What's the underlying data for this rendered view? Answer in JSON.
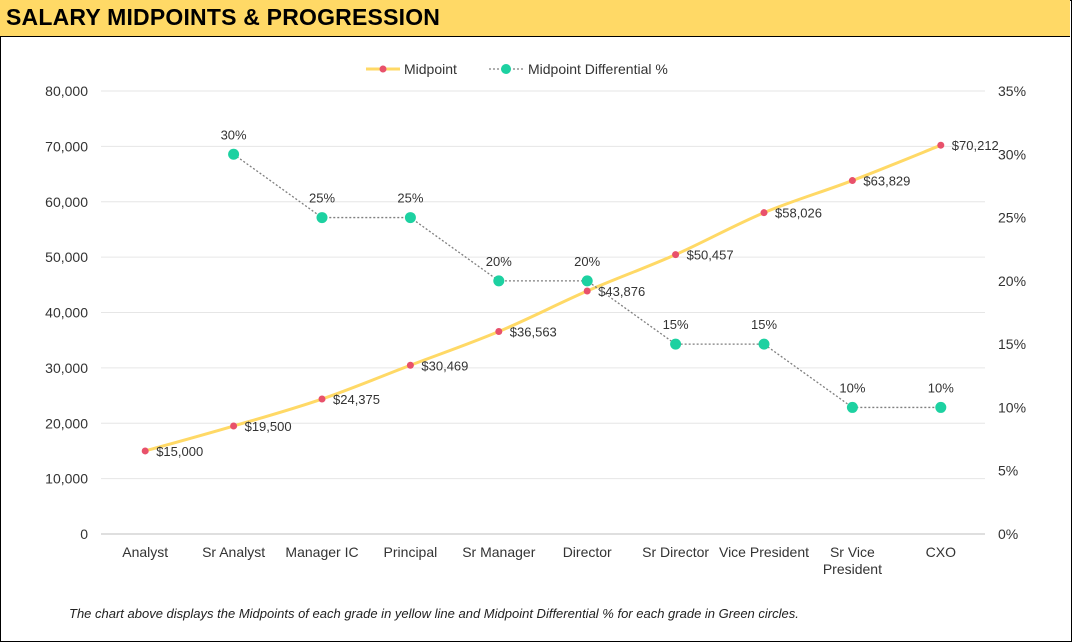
{
  "header": {
    "title": "SALARY MIDPOINTS & PROGRESSION"
  },
  "footnote": "The chart above displays the Midpoints of each grade in yellow line and Midpoint Differential % for each grade in Green circles.",
  "chart_data": {
    "type": "line",
    "categories": [
      [
        "Analyst"
      ],
      [
        "Sr Analyst"
      ],
      [
        "Manager IC"
      ],
      [
        "Principal"
      ],
      [
        "Sr Manager"
      ],
      [
        "Director"
      ],
      [
        "Sr Director"
      ],
      [
        "Vice President"
      ],
      [
        "Sr Vice",
        "President"
      ],
      [
        "CXO"
      ]
    ],
    "series": [
      {
        "name": "Midpoint",
        "axis": "left",
        "color": "#FFD966",
        "marker_color": "#E8516B",
        "values": [
          15000,
          19500,
          24375,
          30469,
          36563,
          43876,
          50457,
          58026,
          63829,
          70212
        ],
        "labels": [
          "$15,000",
          "$19,500",
          "$24,375",
          "$30,469",
          "$36,563",
          "$43,876",
          "$50,457",
          "$58,026",
          "$63,829",
          "$70,212"
        ]
      },
      {
        "name": "Midpoint Differential %",
        "axis": "right",
        "color": "#7F7F7F",
        "marker_color": "#1DD1A1",
        "values": [
          null,
          30,
          25,
          25,
          20,
          20,
          15,
          15,
          10,
          10
        ],
        "labels": [
          "",
          "30%",
          "25%",
          "25%",
          "20%",
          "20%",
          "15%",
          "15%",
          "10%",
          "10%"
        ]
      }
    ],
    "ylim_left": [
      0,
      80000
    ],
    "yticks_left": [
      "0",
      "10,000",
      "20,000",
      "30,000",
      "40,000",
      "50,000",
      "60,000",
      "70,000",
      "80,000"
    ],
    "ylim_right": [
      0,
      35
    ],
    "yticks_right": [
      "0%",
      "5%",
      "10%",
      "15%",
      "20%",
      "25%",
      "30%",
      "35%"
    ],
    "legend_position": "top-center",
    "grid": true
  }
}
